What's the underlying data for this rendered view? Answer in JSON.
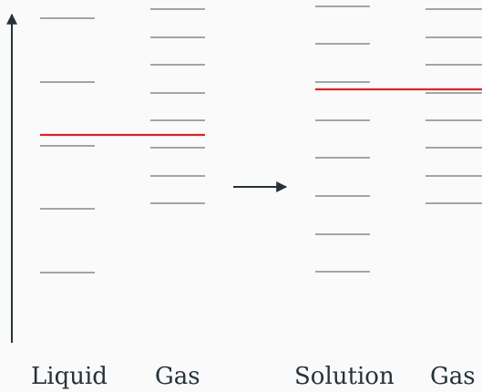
{
  "labels": {
    "liquid": "Liquid",
    "gas_left": "Gas",
    "solution": "Solution",
    "gas_right": "Gas"
  },
  "colors": {
    "level_line": "#7f8b8c",
    "reference_line": "#d92626",
    "axis": "#26323a",
    "background": "#fafafa"
  },
  "icons": {
    "axis": "vertical-arrow-icon",
    "transition": "right-arrow-icon"
  }
}
